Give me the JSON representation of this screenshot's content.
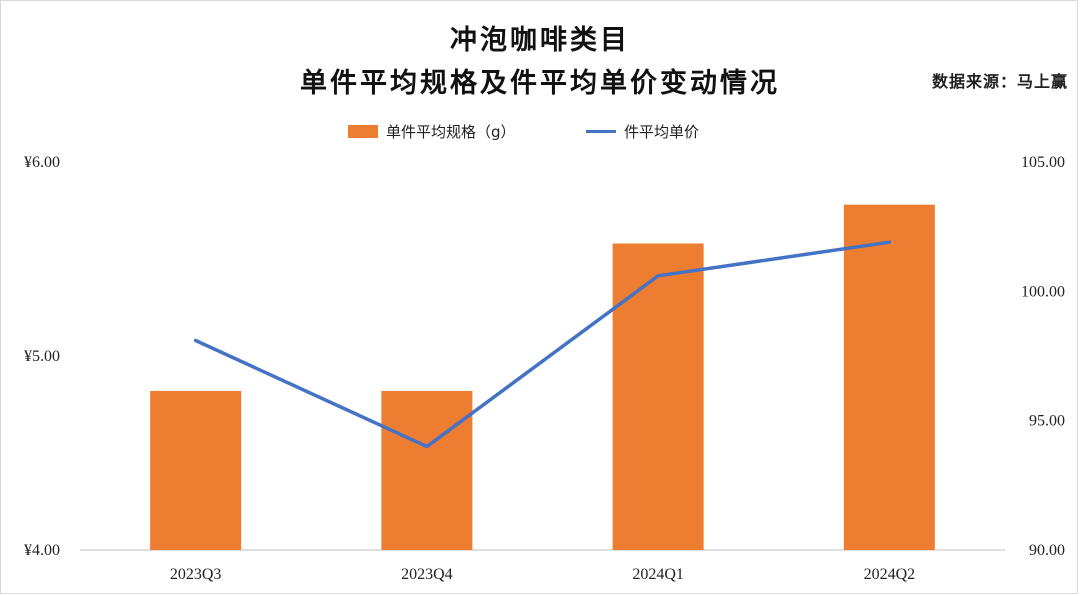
{
  "titles": {
    "line1": "冲泡咖啡类目",
    "line2": "单件平均规格及件平均单价变动情况",
    "source": "数据来源：马上赢"
  },
  "colors": {
    "bar": "#ED7D31",
    "line": "#4472C4",
    "axis": "#bfbfbf",
    "text": "#222222"
  },
  "chart_data": {
    "type": "bar+line",
    "categories": [
      "2023Q3",
      "2023Q4",
      "2024Q1",
      "2024Q2"
    ],
    "series": [
      {
        "name": "单件平均规格（g）",
        "type": "bar",
        "axis": "left",
        "values": [
          4.82,
          4.82,
          5.58,
          5.78
        ]
      },
      {
        "name": "件平均单价",
        "type": "line",
        "axis": "right",
        "values": [
          98.1,
          94.0,
          100.6,
          101.9
        ]
      }
    ],
    "left_axis": {
      "ylim": [
        4.0,
        6.0
      ],
      "ticks": [
        "¥4.00",
        "¥5.00",
        "¥6.00"
      ],
      "tick_values": [
        4.0,
        5.0,
        6.0
      ]
    },
    "right_axis": {
      "ylim": [
        90.0,
        105.0
      ],
      "ticks": [
        "90.00",
        "95.00",
        "100.00",
        "105.00"
      ],
      "tick_values": [
        90,
        95,
        100,
        105
      ]
    },
    "legend_position": "top-center",
    "grid": false
  }
}
